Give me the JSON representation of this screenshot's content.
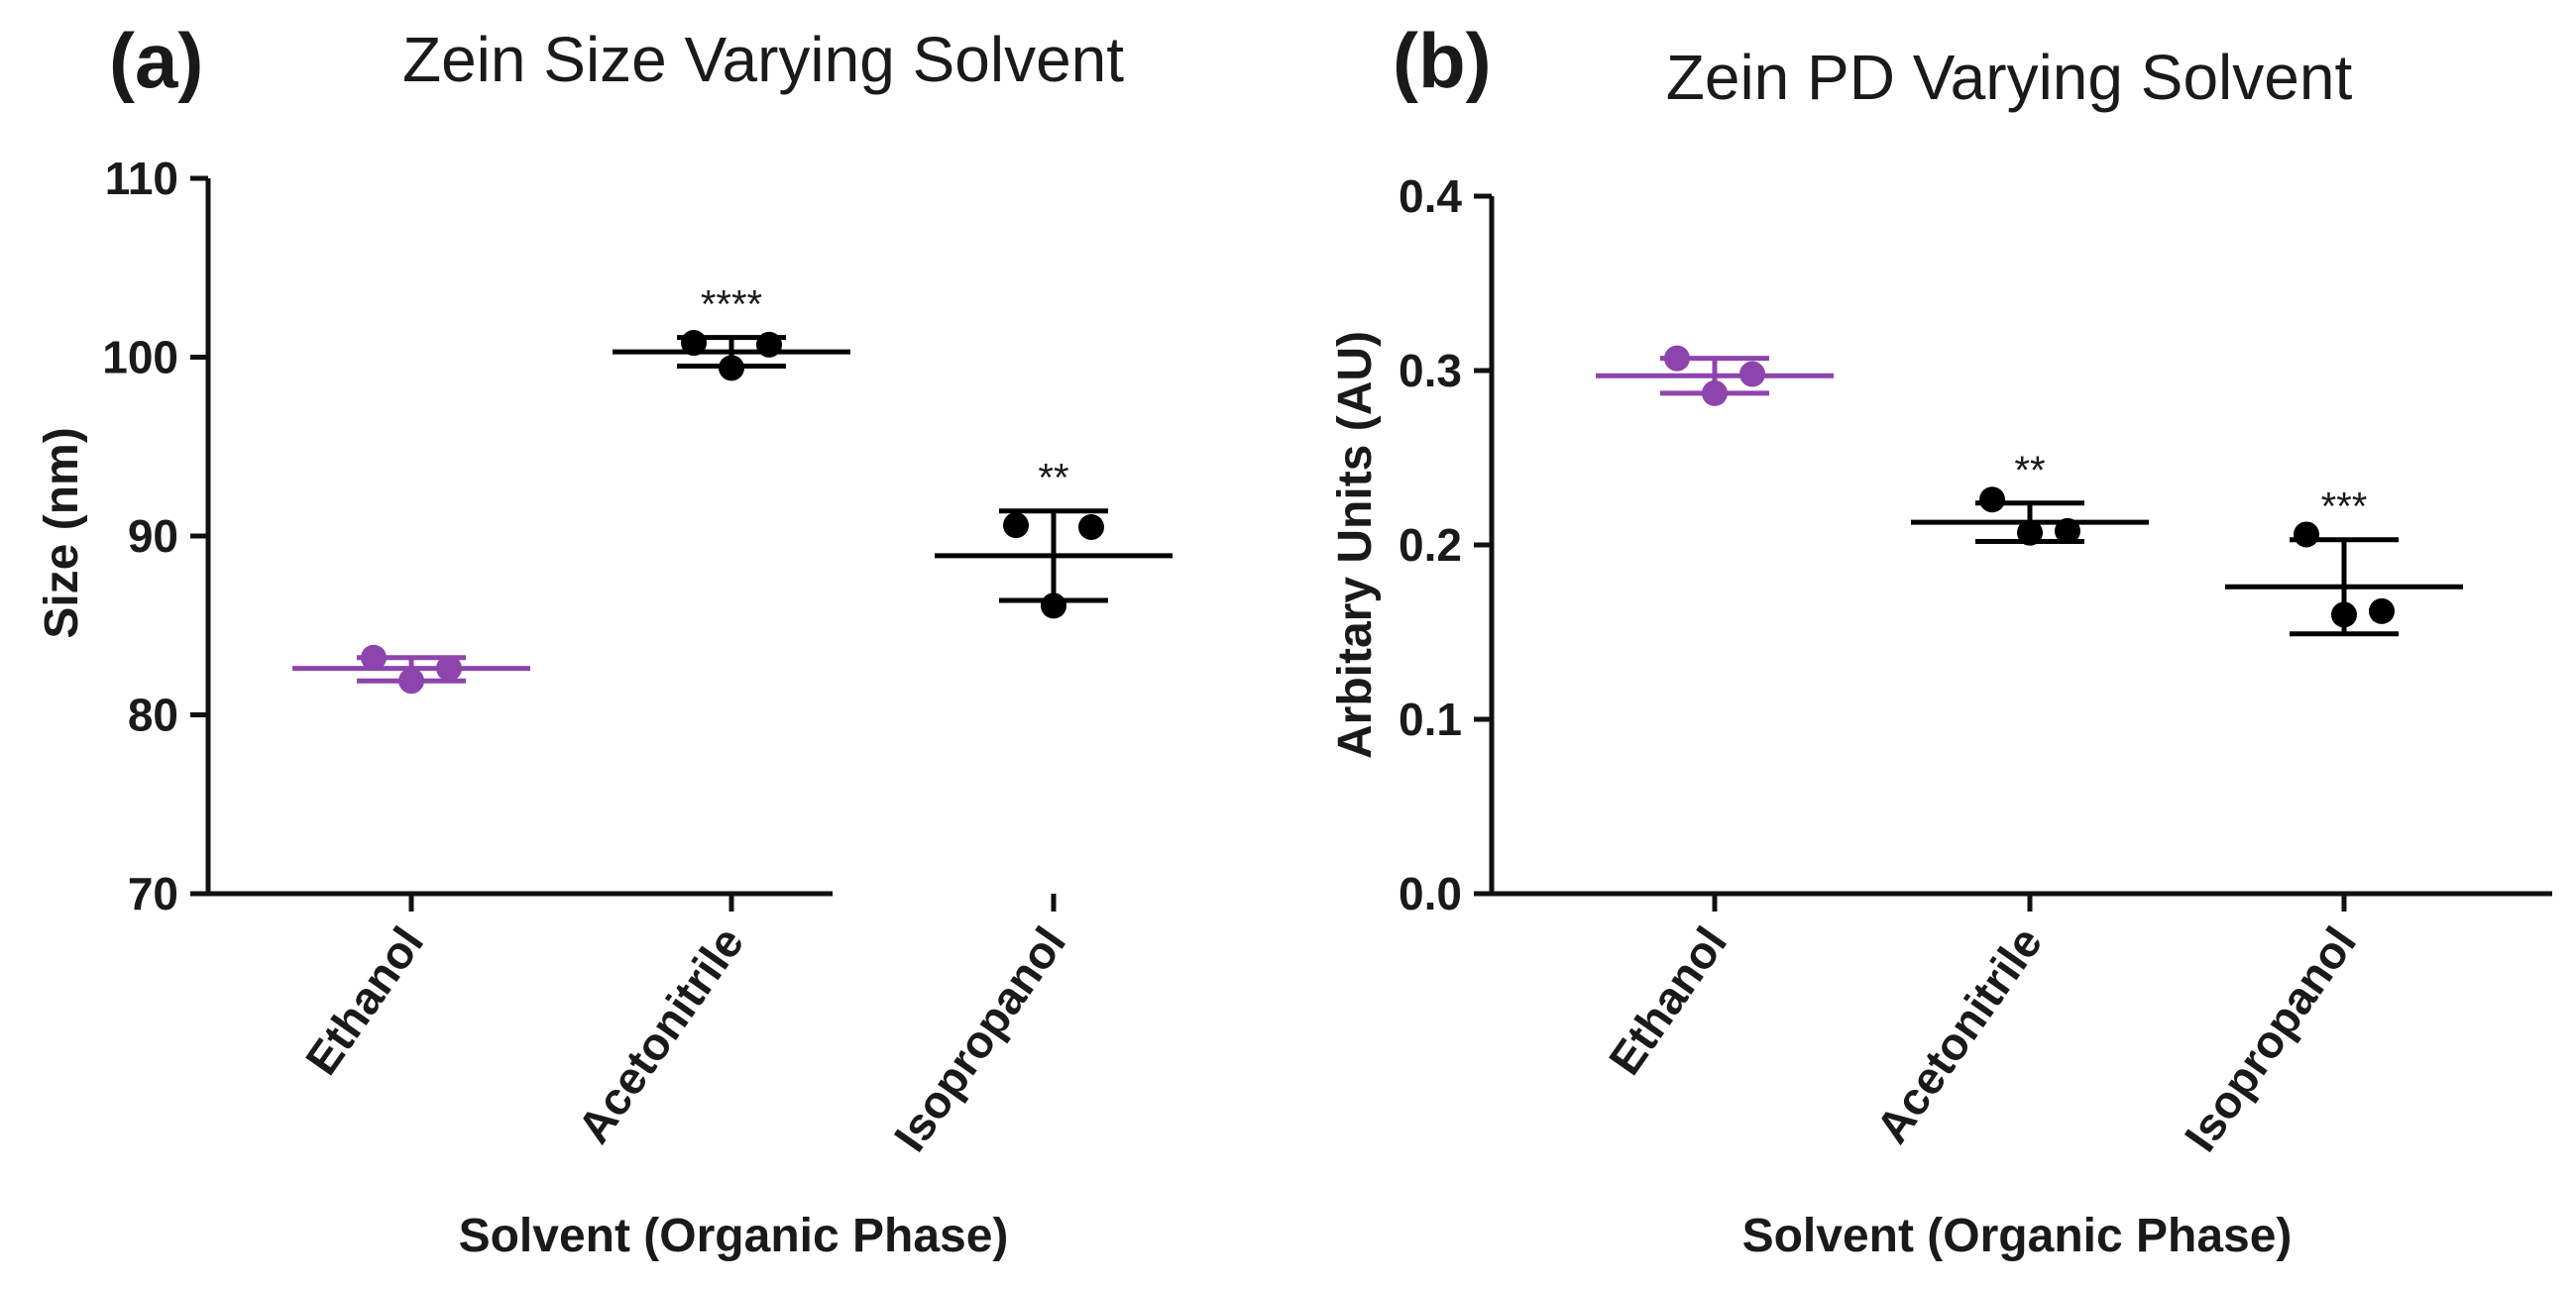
{
  "chart_data": [
    {
      "type": "scatter",
      "panel_label": "(a)",
      "title": "Zein Size Varying Solvent",
      "xlabel": "Solvent (Organic Phase)",
      "ylabel": "Size (nm)",
      "ylim": [
        70,
        110
      ],
      "yticks": [
        "70",
        "80",
        "90",
        "100",
        "110"
      ],
      "categories": [
        "Ethanol",
        "Acetonitrile",
        "Isopropanol"
      ],
      "groups": [
        {
          "category": "Ethanol",
          "points": [
            83.2,
            81.9,
            82.6
          ],
          "mean": 82.6,
          "sd_low": 81.9,
          "sd_high": 83.2,
          "color": "#8e44ad",
          "significance": ""
        },
        {
          "category": "Acetonitrile",
          "points": [
            100.8,
            99.4,
            100.7
          ],
          "mean": 100.3,
          "sd_low": 99.5,
          "sd_high": 101.1,
          "color": "#000000",
          "significance": "****"
        },
        {
          "category": "Isopropanol",
          "points": [
            90.6,
            86.1,
            90.5
          ],
          "mean": 88.9,
          "sd_low": 86.4,
          "sd_high": 91.4,
          "color": "#000000",
          "significance": "**"
        }
      ]
    },
    {
      "type": "scatter",
      "panel_label": "(b)",
      "title": "Zein PD Varying Solvent",
      "xlabel": "Solvent (Organic Phase)",
      "ylabel": "Arbitary Units (AU)",
      "ylim": [
        0.0,
        0.4
      ],
      "yticks": [
        "0.0",
        "0.1",
        "0.2",
        "0.3",
        "0.4"
      ],
      "categories": [
        "Ethanol",
        "Acetonitrile",
        "Isopropanol"
      ],
      "groups": [
        {
          "category": "Ethanol",
          "points": [
            0.307,
            0.287,
            0.298
          ],
          "mean": 0.297,
          "sd_low": 0.287,
          "sd_high": 0.307,
          "color": "#8e44ad",
          "significance": ""
        },
        {
          "category": "Acetonitrile",
          "points": [
            0.226,
            0.207,
            0.208
          ],
          "mean": 0.213,
          "sd_low": 0.202,
          "sd_high": 0.224,
          "color": "#000000",
          "significance": "**"
        },
        {
          "category": "Isopropanol",
          "points": [
            0.206,
            0.16,
            0.162
          ],
          "mean": 0.176,
          "sd_low": 0.149,
          "sd_high": 0.203,
          "color": "#000000",
          "significance": "***"
        }
      ]
    }
  ]
}
